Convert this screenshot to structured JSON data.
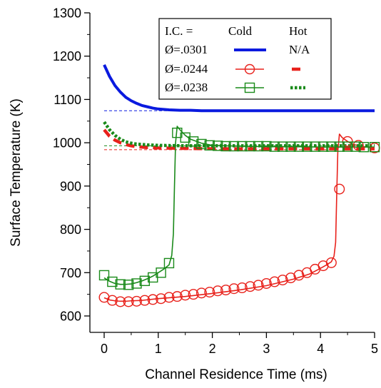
{
  "chart_data": {
    "type": "line",
    "xlabel": "Channel Residence Time (ms)",
    "ylabel": "Surface Temperature (K)",
    "xlim": [
      0,
      5
    ],
    "ylim": [
      600,
      1300
    ],
    "xticks": [
      0,
      1,
      2,
      3,
      4,
      5
    ],
    "yticks": [
      600,
      700,
      800,
      900,
      1000,
      1100,
      1200,
      1300
    ],
    "grid": false,
    "legend": {
      "placement": "top-right",
      "header": {
        "ic": "I.C. =",
        "cold": "Cold",
        "hot": "Hot"
      },
      "rows": [
        {
          "label": "Ø=.0301",
          "hot_text": "N/A"
        },
        {
          "label": "Ø=.0244",
          "hot_text": ""
        },
        {
          "label": "Ø=.0238",
          "hot_text": ""
        }
      ]
    },
    "colors": {
      "blue": "#0a1adf",
      "red": "#e8211b",
      "green": "#1a8a1a"
    },
    "series": [
      {
        "name": "Ø=.0301 Cold",
        "color": "#0a1adf",
        "style": "solid-thick",
        "x": [
          0,
          0.1,
          0.2,
          0.3,
          0.4,
          0.5,
          0.6,
          0.7,
          0.8,
          0.9,
          1.0,
          1.2,
          1.4,
          1.6,
          1.8,
          2.0,
          2.5,
          3.0,
          3.5,
          4.0,
          4.5,
          5.0
        ],
        "y": [
          1180,
          1153,
          1132,
          1117,
          1105,
          1097,
          1091,
          1086,
          1083,
          1080,
          1078,
          1076,
          1075,
          1075,
          1074,
          1074,
          1074,
          1074,
          1074,
          1074,
          1074,
          1074
        ]
      },
      {
        "name": "Ø=.0244 Cold",
        "color": "#e8211b",
        "style": "solid-markers-circle",
        "x": [
          0,
          0.1,
          0.2,
          0.3,
          0.4,
          0.5,
          0.7,
          1.0,
          1.5,
          2.0,
          2.5,
          3.0,
          3.5,
          3.8,
          4.0,
          4.1,
          4.2,
          4.25,
          4.28,
          4.3,
          4.32,
          4.35,
          4.4,
          4.5,
          4.6,
          4.8,
          5.0
        ],
        "y": [
          642,
          637,
          635,
          634,
          634,
          635,
          636,
          640,
          645,
          652,
          660,
          670,
          685,
          697,
          710,
          717,
          725,
          738,
          770,
          880,
          980,
          1020,
          1012,
          1003,
          996,
          991,
          988
        ]
      },
      {
        "name": "Ø=.0244 markers",
        "color": "#e8211b",
        "marker": "circle",
        "x": [
          0,
          0.15,
          0.3,
          0.45,
          0.6,
          0.75,
          0.9,
          1.05,
          1.2,
          1.35,
          1.5,
          1.65,
          1.8,
          1.95,
          2.1,
          2.25,
          2.4,
          2.55,
          2.7,
          2.85,
          3.0,
          3.15,
          3.3,
          3.45,
          3.6,
          3.75,
          3.9,
          4.05,
          4.2,
          4.35,
          4.5,
          4.7,
          5.0
        ],
        "y": [
          643,
          636,
          633,
          633,
          634,
          636,
          638,
          640,
          643,
          645,
          648,
          650,
          653,
          655,
          658,
          660,
          663,
          665,
          668,
          671,
          675,
          679,
          683,
          688,
          694,
          700,
          708,
          716,
          723,
          893,
          1003,
          994,
          988
        ]
      },
      {
        "name": "Ø=.0238 Cold",
        "color": "#1a8a1a",
        "style": "solid-markers-square",
        "x": [
          0,
          0.1,
          0.2,
          0.3,
          0.4,
          0.5,
          0.6,
          0.7,
          0.8,
          0.9,
          1.0,
          1.1,
          1.2,
          1.25,
          1.28,
          1.3,
          1.32,
          1.35,
          1.4,
          1.5,
          1.6,
          1.8,
          2.0,
          2.5,
          3.0,
          3.5,
          4.0,
          4.5,
          5.0
        ],
        "y": [
          688,
          680,
          675,
          673,
          673,
          674,
          677,
          681,
          686,
          692,
          700,
          708,
          718,
          740,
          790,
          900,
          1000,
          1038,
          1030,
          1017,
          1008,
          999,
          994,
          992,
          991,
          991,
          990,
          990,
          990
        ]
      },
      {
        "name": "Ø=.0238 markers",
        "color": "#1a8a1a",
        "marker": "square",
        "x": [
          0,
          0.15,
          0.3,
          0.45,
          0.6,
          0.75,
          0.9,
          1.05,
          1.2,
          1.35,
          1.5,
          1.65,
          1.8,
          1.95,
          2.1,
          2.25,
          2.4,
          2.55,
          2.7,
          2.85,
          3.0,
          3.15,
          3.3,
          3.45,
          3.6,
          3.75,
          3.9,
          4.05,
          4.2,
          4.35,
          4.5,
          4.65,
          4.8,
          5.0
        ],
        "y": [
          694,
          679,
          673,
          672,
          675,
          681,
          689,
          700,
          722,
          1023,
          1012,
          1003,
          997,
          994,
          993,
          992,
          992,
          992,
          992,
          992,
          992,
          991,
          991,
          991,
          991,
          991,
          991,
          991,
          991,
          991,
          991,
          991,
          990,
          990
        ]
      },
      {
        "name": "Ø=.0244 Hot",
        "color": "#e8211b",
        "style": "dashed-thick",
        "x": [
          0,
          0.1,
          0.2,
          0.3,
          0.4,
          0.5,
          0.6,
          0.8,
          1.0,
          1.5,
          2.0,
          2.5,
          3.0,
          3.5,
          4.0,
          4.5,
          5.0
        ],
        "y": [
          1030,
          1015,
          1006,
          1000,
          996,
          993,
          991,
          989,
          988,
          987,
          986,
          986,
          986,
          986,
          986,
          986,
          986
        ]
      },
      {
        "name": "Ø=.0238 Hot",
        "color": "#1a8a1a",
        "style": "dotted-thick",
        "x": [
          0,
          0.1,
          0.2,
          0.3,
          0.4,
          0.5,
          0.6,
          0.8,
          1.0,
          1.5,
          2.0,
          2.5,
          3.0,
          3.5,
          4.0,
          4.5,
          5.0
        ],
        "y": [
          1048,
          1030,
          1017,
          1008,
          1002,
          999,
          997,
          995,
          994,
          993,
          993,
          993,
          993,
          993,
          993,
          993,
          993
        ]
      }
    ],
    "reference_lines": [
      {
        "y": 1074,
        "x_from": 0,
        "x_to": 2,
        "color": "#0a1adf"
      },
      {
        "y": 993,
        "x_from": 0,
        "x_to": 4.3,
        "color": "#1a8a1a"
      },
      {
        "y": 984,
        "x_from": 0,
        "x_to": 4.3,
        "color": "#e8211b"
      }
    ]
  }
}
